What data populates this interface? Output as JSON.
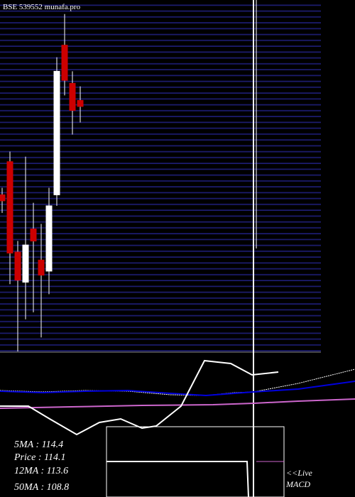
{
  "chart_data": {
    "type": "candlestick",
    "title": "BSE 539552 munafa.pro",
    "up_color": "#ffffff",
    "down_color": "#cc0000",
    "ylim": [
      90,
      125
    ],
    "open": [
      105.6,
      108.9,
      99.9,
      96.9,
      102.2,
      99.1,
      98.0,
      105.6,
      120.5,
      116.7,
      115.0
    ],
    "high": [
      106.3,
      109.9,
      101.0,
      109.4,
      104.8,
      102.7,
      106.3,
      119.3,
      123.6,
      117.9,
      116.4
    ],
    "low": [
      103.8,
      96.7,
      90.0,
      93.2,
      93.9,
      91.4,
      95.7,
      104.5,
      115.5,
      111.6,
      112.8
    ],
    "close": [
      105.0,
      99.8,
      97.1,
      100.6,
      101.0,
      97.6,
      104.5,
      117.9,
      117.0,
      114.0,
      114.4
    ],
    "indicators": [
      "5MA : 114.4",
      "Price  : 114.1",
      "12MA : 113.6",
      "50MA : 108.8"
    ],
    "macd_label": [
      "<<Live",
      "MACD"
    ]
  }
}
